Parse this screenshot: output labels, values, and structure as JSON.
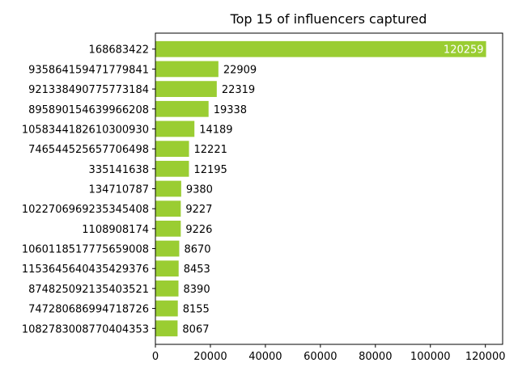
{
  "chart_data": {
    "type": "bar",
    "orientation": "horizontal",
    "title": "Top 15 of influencers captured",
    "xlabel": "",
    "ylabel": "",
    "xlim": [
      0,
      126271
    ],
    "xticks": [
      0,
      20000,
      40000,
      60000,
      80000,
      100000,
      120000
    ],
    "xtick_labels": [
      "0",
      "20000",
      "40000",
      "60000",
      "80000",
      "100000",
      "120000"
    ],
    "grid": false,
    "bar_color": "#9acd32",
    "inside_label_color": "#ffffff",
    "label_color": "#000000",
    "categories": [
      "168683422",
      "935864159471779841",
      "921338490775773184",
      "895890154639966208",
      "1058344182610300930",
      "746544525657706498",
      "335141638",
      "134710787",
      "1022706969235345408",
      "1108908174",
      "1060118517775659008",
      "1153645640435429376",
      "874825092135403521",
      "747280686994718726",
      "1082783008770404353"
    ],
    "values": [
      120259,
      22909,
      22319,
      19338,
      14189,
      12221,
      12195,
      9380,
      9227,
      9226,
      8670,
      8453,
      8390,
      8155,
      8067
    ],
    "value_labels": [
      "120259",
      "22909",
      "22319",
      "19338",
      "14189",
      "12221",
      "12195",
      "9380",
      "9227",
      "9226",
      "8670",
      "8453",
      "8390",
      "8155",
      "8067"
    ]
  }
}
